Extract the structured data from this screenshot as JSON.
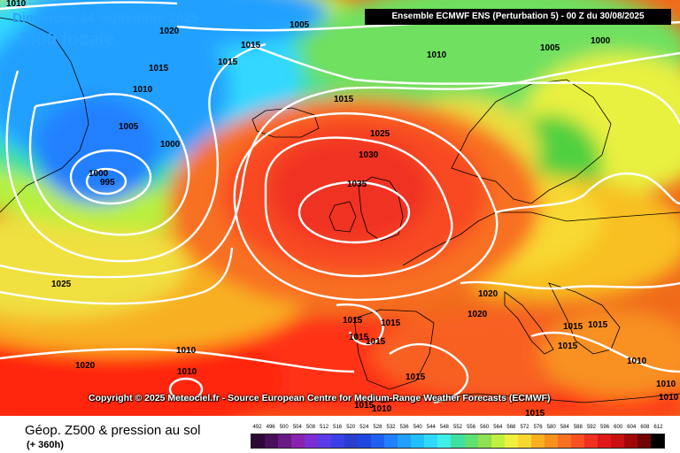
{
  "header": {
    "date_title": "Dimanche 14 septembre 2025",
    "time_title": "2:00 locale",
    "run_info": "Ensemble ECMWF ENS  (Perturbation 5)  -  00 Z du 30/08/2025"
  },
  "copyright": "Copyright © 2025 Meteociel.fr - Source European Centre for Medium-Range Weather Forecasts (ECMWF)",
  "footer": {
    "field_label": "Géop. Z500 & pression au sol",
    "lead_time": "(+ 360h)"
  },
  "legend": {
    "values": [
      "492",
      "496",
      "500",
      "504",
      "508",
      "512",
      "516",
      "520",
      "524",
      "528",
      "532",
      "536",
      "540",
      "544",
      "548",
      "552",
      "556",
      "560",
      "564",
      "568",
      "572",
      "576",
      "580",
      "584",
      "588",
      "592",
      "596",
      "600",
      "604",
      "608",
      "612"
    ],
    "colors": [
      "#2d0a35",
      "#4a0f5c",
      "#6a1a86",
      "#8a22b0",
      "#7b2fd4",
      "#5a3be8",
      "#3b3fe8",
      "#2a3fd0",
      "#1f48e0",
      "#2060f0",
      "#2080ff",
      "#20a0ff",
      "#20c0ff",
      "#30d8ff",
      "#40f0e8",
      "#40e0a0",
      "#60e070",
      "#90e050",
      "#c0f040",
      "#f0f040",
      "#f8d830",
      "#f8b020",
      "#f89020",
      "#f87020",
      "#f85020",
      "#f03020",
      "#e01818",
      "#c81010",
      "#a00808",
      "#700404",
      "#000000"
    ]
  },
  "map": {
    "isobar_labels": [
      "1010",
      "1005",
      "1020",
      "1015",
      "1015",
      "1015",
      "1010",
      "1005",
      "1000",
      "1000",
      "995",
      "1015",
      "1025",
      "1030",
      "1035",
      "1010",
      "1005",
      "1000",
      "1025",
      "1020",
      "1020",
      "1020",
      "1015",
      "1015",
      "1015",
      "1015",
      "1010",
      "1010",
      "1015",
      "1015",
      "1015",
      "1010",
      "1010",
      "1015",
      "1010",
      "1015",
      "1010",
      "1015"
    ]
  }
}
